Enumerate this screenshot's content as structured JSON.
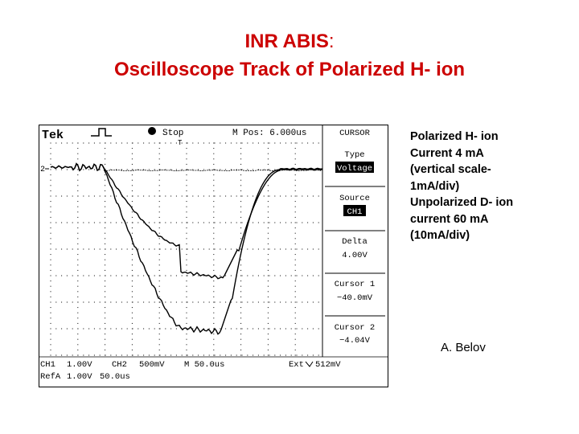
{
  "slide": {
    "title_prefix": "INR ABIS",
    "title_colon": ":",
    "title_line2": "Oscilloscope Track of Polarized H- ion",
    "description_lines": [
      "Polarized H- ion",
      "Current 4 mA",
      "(vertical scale-",
      "1mA/div)",
      "Unpolarized D- ion",
      "current 60 mA",
      "(10mA/div)"
    ],
    "author": "A. Belov"
  },
  "scope": {
    "brand": "Tek",
    "run_state": "Stop",
    "mpos": "M Pos: 6.000us",
    "trigger_marker": "T",
    "ch1_marker": "2",
    "panel": {
      "header": "CURSOR",
      "type_label": "Type",
      "type_value": "Voltage",
      "source_label": "Source",
      "source_value": "CH1",
      "delta_label": "Delta",
      "delta_value": "4.00V",
      "cursor1_label": "Cursor 1",
      "cursor1_value": "−40.0mV",
      "cursor2_label": "Cursor 2",
      "cursor2_value": "−4.04V"
    },
    "status_row1": {
      "ch1": "CH1",
      "ch1_scale": "1.00V",
      "ch2": "CH2",
      "ch2_scale": "500mV",
      "timebase": "M 50.0us",
      "trigger": "Ext",
      "trigger_level": "512mV"
    },
    "status_row2": {
      "ref": "RefA",
      "ref_scale": "1.00V",
      "ref_time": "50.0us"
    }
  }
}
